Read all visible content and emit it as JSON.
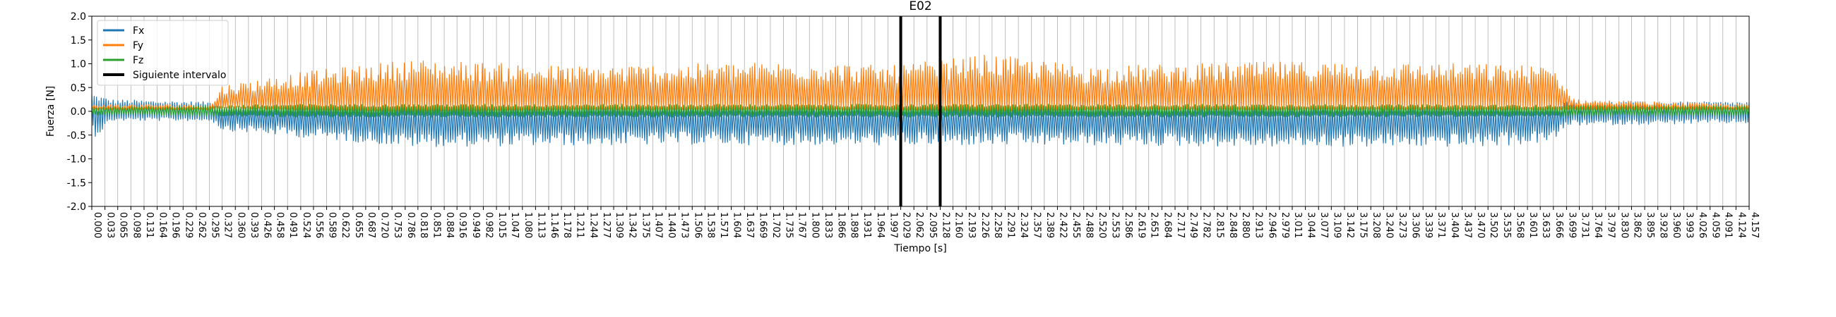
{
  "chart_data": {
    "type": "line",
    "title": "E02",
    "xlabel": "Tiempo [s]",
    "ylabel": "Fuerza [N]",
    "xlim": [
      0,
      4.157
    ],
    "ylim": [
      -2.0,
      2.0
    ],
    "yticks": [
      -2.0,
      -1.5,
      -1.0,
      -0.5,
      0.0,
      0.5,
      1.0,
      1.5,
      2.0
    ],
    "xtick_labels": [
      "0.000",
      "0.033",
      "0.065",
      "0.098",
      "0.131",
      "0.164",
      "0.196",
      "0.229",
      "0.262",
      "0.295",
      "0.327",
      "0.360",
      "0.393",
      "0.426",
      "0.458",
      "0.491",
      "0.524",
      "0.556",
      "0.589",
      "0.622",
      "0.655",
      "0.687",
      "0.720",
      "0.753",
      "0.786",
      "0.818",
      "0.851",
      "0.884",
      "0.916",
      "0.949",
      "0.982",
      "1.015",
      "1.047",
      "1.080",
      "1.113",
      "1.146",
      "1.178",
      "1.211",
      "1.244",
      "1.277",
      "1.309",
      "1.342",
      "1.375",
      "1.407",
      "1.440",
      "1.473",
      "1.506",
      "1.538",
      "1.571",
      "1.604",
      "1.637",
      "1.669",
      "1.702",
      "1.735",
      "1.767",
      "1.800",
      "1.833",
      "1.866",
      "1.898",
      "1.931",
      "1.964",
      "1.997",
      "2.029",
      "2.062",
      "2.095",
      "2.128",
      "2.160",
      "2.193",
      "2.226",
      "2.258",
      "2.291",
      "2.324",
      "2.357",
      "2.389",
      "2.422",
      "2.455",
      "2.488",
      "2.520",
      "2.553",
      "2.586",
      "2.619",
      "2.651",
      "2.684",
      "2.717",
      "2.749",
      "2.782",
      "2.815",
      "2.848",
      "2.880",
      "2.913",
      "2.946",
      "2.979",
      "3.011",
      "3.044",
      "3.077",
      "3.109",
      "3.142",
      "3.175",
      "3.208",
      "3.240",
      "3.273",
      "3.306",
      "3.339",
      "3.371",
      "3.404",
      "3.437",
      "3.470",
      "3.502",
      "3.535",
      "3.568",
      "3.601",
      "3.633",
      "3.666",
      "3.699",
      "3.731",
      "3.764",
      "3.797",
      "3.830",
      "3.862",
      "3.895",
      "3.928",
      "3.960",
      "3.993",
      "4.026",
      "4.059",
      "4.091",
      "4.124",
      "4.157"
    ],
    "grid": "vertical",
    "legend_position": "upper-left",
    "series": [
      {
        "name": "Fx",
        "color": "#1f77b4",
        "shape": "oscillation",
        "x": [
          0.0,
          0.01,
          0.05,
          0.3,
          0.327,
          0.8,
          1.5,
          2.0,
          2.5,
          3.0,
          3.5,
          3.666,
          3.7,
          4.157
        ],
        "upper": [
          0.4,
          0.35,
          0.25,
          0.2,
          0.1,
          0.1,
          0.08,
          0.08,
          0.08,
          0.08,
          0.08,
          0.1,
          0.2,
          0.2
        ],
        "lower": [
          -0.35,
          -0.55,
          -0.2,
          -0.2,
          -0.4,
          -0.75,
          -0.7,
          -0.72,
          -0.72,
          -0.75,
          -0.75,
          -0.65,
          -0.3,
          -0.25
        ]
      },
      {
        "name": "Fy",
        "color": "#ff7f0e",
        "shape": "oscillation",
        "x": [
          0.0,
          0.05,
          0.3,
          0.327,
          0.5,
          0.8,
          1.2,
          1.8,
          2.0,
          2.25,
          2.5,
          3.0,
          3.5,
          3.666,
          3.72,
          4.157
        ],
        "upper": [
          0.15,
          0.15,
          0.15,
          0.55,
          0.8,
          1.1,
          0.95,
          1.05,
          0.95,
          1.2,
          0.95,
          1.05,
          1.0,
          0.95,
          0.25,
          0.15
        ],
        "lower": [
          0.05,
          0.05,
          0.05,
          0.1,
          0.05,
          0.0,
          0.05,
          0.05,
          0.05,
          0.0,
          0.05,
          0.05,
          0.05,
          0.05,
          0.05,
          0.05
        ]
      },
      {
        "name": "Fz",
        "color": "#2ca02c",
        "shape": "oscillation",
        "x": [
          0.0,
          0.5,
          1.0,
          2.0,
          3.0,
          4.157
        ],
        "upper": [
          0.1,
          0.15,
          0.15,
          0.15,
          0.15,
          0.12
        ],
        "lower": [
          -0.08,
          -0.12,
          -0.12,
          -0.12,
          -0.12,
          -0.1
        ]
      },
      {
        "name": "Siguiente intervalo",
        "color": "#000000",
        "shape": "vlines",
        "x": [
          2.029,
          2.128
        ]
      }
    ]
  }
}
